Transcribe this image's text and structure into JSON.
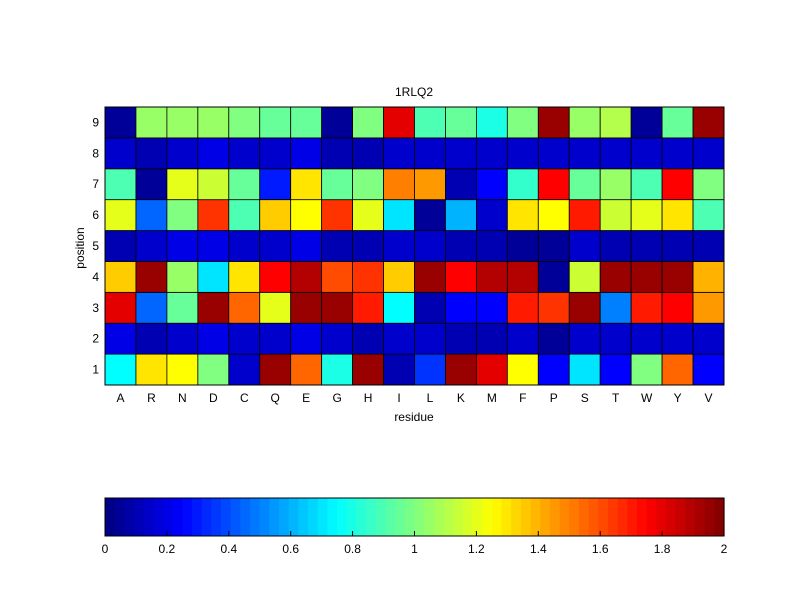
{
  "chart_data": {
    "type": "heatmap",
    "title": "1RLQ2",
    "xlabel": "residue",
    "ylabel": "position",
    "colormap": "jet",
    "x_categories": [
      "A",
      "R",
      "N",
      "D",
      "C",
      "Q",
      "E",
      "G",
      "H",
      "I",
      "L",
      "K",
      "M",
      "F",
      "P",
      "S",
      "T",
      "W",
      "Y",
      "V"
    ],
    "y_categories": [
      "1",
      "2",
      "3",
      "4",
      "5",
      "6",
      "7",
      "8",
      "9"
    ],
    "values": [
      [
        0.75,
        1.3,
        1.25,
        1.0,
        0.15,
        1.95,
        1.55,
        0.8,
        1.95,
        0.1,
        0.35,
        1.95,
        1.8,
        1.25,
        0.25,
        0.7,
        0.25,
        1.0,
        1.55,
        0.25
      ],
      [
        0.2,
        0.1,
        0.15,
        0.2,
        0.15,
        0.15,
        0.2,
        0.15,
        0.1,
        0.15,
        0.15,
        0.1,
        0.1,
        0.15,
        0.05,
        0.15,
        0.15,
        0.15,
        0.15,
        0.15
      ],
      [
        1.8,
        0.45,
        0.95,
        1.95,
        1.55,
        1.2,
        1.95,
        1.95,
        1.7,
        0.75,
        0.1,
        0.25,
        0.25,
        1.7,
        1.65,
        1.95,
        0.5,
        1.7,
        1.75,
        1.45
      ],
      [
        1.35,
        1.95,
        1.05,
        0.7,
        1.3,
        1.75,
        1.9,
        1.6,
        1.65,
        1.35,
        1.95,
        1.75,
        1.9,
        1.9,
        0.05,
        1.15,
        1.95,
        1.95,
        1.95,
        1.4
      ],
      [
        0.1,
        0.15,
        0.2,
        0.2,
        0.15,
        0.15,
        0.2,
        0.1,
        0.1,
        0.15,
        0.15,
        0.1,
        0.1,
        0.05,
        0.05,
        0.15,
        0.1,
        0.1,
        0.1,
        0.1
      ],
      [
        1.2,
        0.45,
        1.0,
        1.65,
        0.9,
        1.35,
        1.25,
        1.65,
        1.2,
        0.7,
        0.05,
        0.6,
        0.15,
        1.3,
        1.25,
        1.7,
        1.15,
        1.2,
        1.3,
        0.9
      ],
      [
        0.9,
        0.05,
        1.2,
        1.15,
        0.95,
        0.3,
        1.3,
        0.95,
        1.0,
        1.5,
        1.45,
        0.1,
        0.25,
        0.85,
        1.75,
        0.95,
        1.05,
        0.9,
        1.75,
        1.0
      ],
      [
        0.15,
        0.1,
        0.15,
        0.2,
        0.15,
        0.15,
        0.2,
        0.1,
        0.1,
        0.15,
        0.15,
        0.15,
        0.15,
        0.15,
        0.15,
        0.15,
        0.15,
        0.15,
        0.15,
        0.15
      ],
      [
        0.05,
        1.05,
        1.05,
        1.05,
        1.0,
        0.95,
        0.95,
        0.05,
        1.0,
        1.8,
        0.9,
        0.95,
        0.8,
        1.0,
        1.95,
        1.05,
        1.1,
        0.05,
        0.95,
        1.95
      ]
    ],
    "colorbar": {
      "range": [
        0,
        2
      ],
      "ticks": [
        "0",
        "0.2",
        "0.4",
        "0.6",
        "0.8",
        "1",
        "1.2",
        "1.4",
        "1.6",
        "1.8",
        "2"
      ],
      "placement": "bottom"
    }
  }
}
